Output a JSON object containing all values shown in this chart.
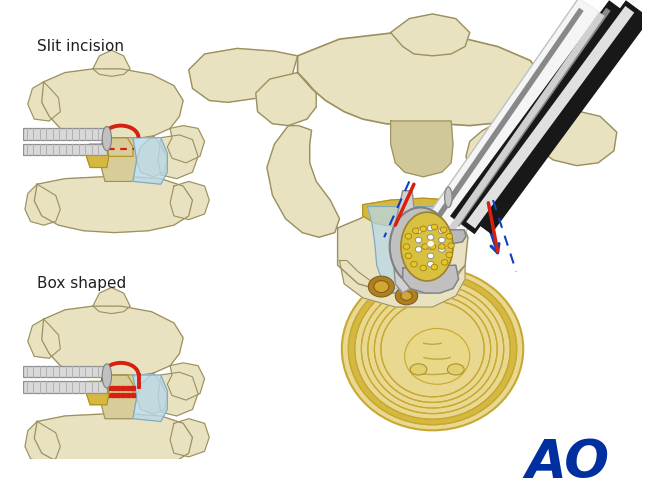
{
  "bg_color": "#ffffff",
  "bone_color": "#e8e2c0",
  "bone_outline": "#9a9060",
  "bone_shadow": "#c8bc90",
  "disc_body_color": "#e8d890",
  "disc_annulus": "#c8a830",
  "disc_inner": "#f0e8a0",
  "nerve_color": "#b8d8e8",
  "nerve_outline": "#80a8b8",
  "lig_yellow": "#d4b840",
  "lig_dark": "#b09020",
  "red_color": "#d82010",
  "yellow_dot": "#e8c820",
  "gray_light": "#d8d8d8",
  "gray_med": "#a8a8a8",
  "gray_dark": "#808080",
  "tube_black": "#181818",
  "tube_white": "#f5f5f5",
  "blue_color": "#1040c0",
  "text_color": "#202020",
  "ao_color": "#0030a0",
  "label_slit": "Slit incision",
  "label_box": "Box shaped"
}
